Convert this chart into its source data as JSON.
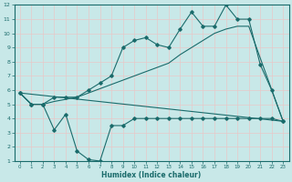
{
  "xlabel": "Humidex (Indice chaleur)",
  "bg_color": "#c8e8e8",
  "grid_color": "#b0d0d0",
  "line_color": "#1a6b6b",
  "xlim": [
    -0.5,
    23.5
  ],
  "ylim": [
    1,
    12
  ],
  "xticks": [
    0,
    1,
    2,
    3,
    4,
    5,
    6,
    7,
    8,
    9,
    10,
    11,
    12,
    13,
    14,
    15,
    16,
    17,
    18,
    19,
    20,
    21,
    22,
    23
  ],
  "yticks": [
    1,
    2,
    3,
    4,
    5,
    6,
    7,
    8,
    9,
    10,
    11,
    12
  ],
  "line1_x": [
    0,
    1,
    2,
    3,
    4,
    5,
    6,
    7,
    8,
    9,
    10,
    11,
    12,
    13,
    14,
    15,
    16,
    17,
    18,
    19,
    20,
    21,
    22,
    23
  ],
  "line1_y": [
    5.8,
    5.0,
    5.0,
    5.5,
    5.5,
    5.5,
    6.0,
    6.5,
    7.0,
    9.0,
    9.5,
    9.7,
    9.2,
    9.0,
    10.3,
    11.5,
    10.5,
    10.5,
    12.0,
    11.0,
    11.0,
    7.8,
    6.0,
    3.8
  ],
  "line2_x": [
    0,
    23
  ],
  "line2_y": [
    5.8,
    3.8
  ],
  "line3_x": [
    0,
    1,
    2,
    3,
    4,
    5,
    6,
    7,
    8,
    9,
    10,
    11,
    12,
    13,
    14,
    15,
    16,
    17,
    18,
    19,
    20,
    21,
    22,
    23
  ],
  "line3_y": [
    5.8,
    5.0,
    5.0,
    3.2,
    4.3,
    1.7,
    1.1,
    1.0,
    3.5,
    3.5,
    4.0,
    4.0,
    4.0,
    4.0,
    4.0,
    4.0,
    4.0,
    4.0,
    4.0,
    4.0,
    4.0,
    4.0,
    4.0,
    3.8
  ],
  "line4_x": [
    0,
    1,
    2,
    3,
    5,
    10,
    11,
    12,
    13,
    14,
    15,
    16,
    17,
    18,
    19,
    20,
    23
  ],
  "line4_y": [
    5.8,
    5.0,
    5.0,
    5.2,
    5.5,
    7.0,
    7.3,
    7.6,
    7.9,
    8.5,
    9.0,
    9.5,
    10.0,
    10.3,
    10.5,
    10.5,
    3.8
  ]
}
